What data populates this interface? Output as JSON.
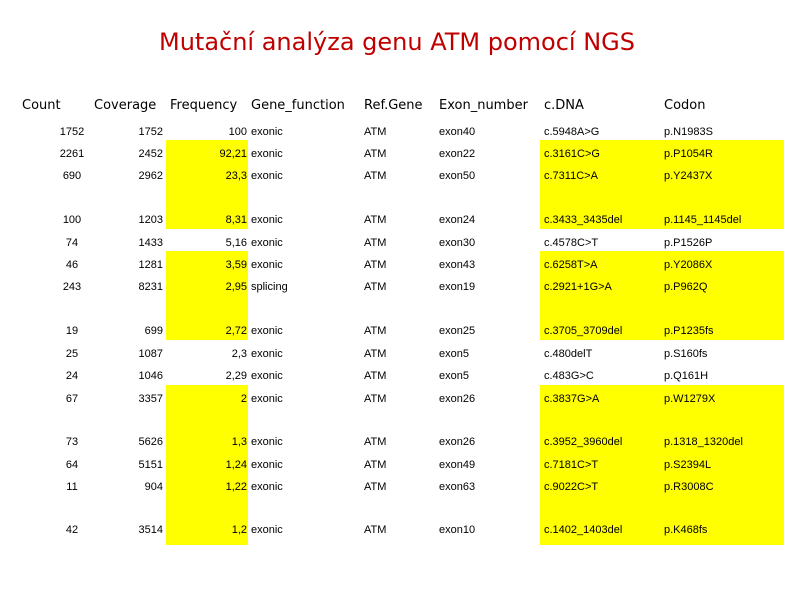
{
  "title": "Mutační analýza genu ATM pomocí NGS",
  "highlight_color": "#ffff00",
  "title_color": "#c00000",
  "headers": [
    "Count",
    "Coverage",
    "Frequency",
    "Gene_function",
    "Ref.Gene",
    "Exon_number",
    "c.DNA",
    "Codon"
  ],
  "rows": [
    {
      "count": "1752",
      "coverage": "1752",
      "frequency": "100",
      "function": "exonic",
      "gene": "ATM",
      "exon": "exon40",
      "cdna": "c.5948A>G",
      "codon": "p.N1983S",
      "highlight": false
    },
    {
      "count": "2261",
      "coverage": "2452",
      "frequency": "92,21",
      "function": "exonic",
      "gene": "ATM",
      "exon": "exon22",
      "cdna": "c.3161C>G",
      "codon": "p.P1054R",
      "highlight": true
    },
    {
      "count": "690",
      "coverage": "2962",
      "frequency": "23,3",
      "function": "exonic",
      "gene": "ATM",
      "exon": "exon50",
      "cdna": "c.7311C>A",
      "codon": "p.Y2437X",
      "highlight": true
    },
    {
      "count": "100",
      "coverage": "1203",
      "frequency": "8,31",
      "function": "exonic",
      "gene": "ATM",
      "exon": "exon24",
      "cdna": "c.3433_3435del",
      "codon": "p.1145_1145del",
      "highlight": true
    },
    {
      "count": "74",
      "coverage": "1433",
      "frequency": "5,16",
      "function": "exonic",
      "gene": "ATM",
      "exon": "exon30",
      "cdna": "c.4578C>T",
      "codon": "p.P1526P",
      "highlight": false
    },
    {
      "count": "46",
      "coverage": "1281",
      "frequency": "3,59",
      "function": "exonic",
      "gene": "ATM",
      "exon": "exon43",
      "cdna": "c.6258T>A",
      "codon": "p.Y2086X",
      "highlight": true
    },
    {
      "count": "243",
      "coverage": "8231",
      "frequency": "2,95",
      "function": "splicing",
      "gene": "ATM",
      "exon": "exon19",
      "cdna": "c.2921+1G>A",
      "codon": "p.P962Q",
      "highlight": true
    },
    {
      "count": "19",
      "coverage": "699",
      "frequency": "2,72",
      "function": "exonic",
      "gene": "ATM",
      "exon": "exon25",
      "cdna": "c.3705_3709del",
      "codon": "p.P1235fs",
      "highlight": true
    },
    {
      "count": "25",
      "coverage": "1087",
      "frequency": "2,3",
      "function": "exonic",
      "gene": "ATM",
      "exon": "exon5",
      "cdna": "c.480delT",
      "codon": "p.S160fs",
      "highlight": false
    },
    {
      "count": "24",
      "coverage": "1046",
      "frequency": "2,29",
      "function": "exonic",
      "gene": "ATM",
      "exon": "exon5",
      "cdna": "c.483G>C",
      "codon": "p.Q161H",
      "highlight": false
    },
    {
      "count": "67",
      "coverage": "3357",
      "frequency": "2",
      "function": "exonic",
      "gene": "ATM",
      "exon": "exon26",
      "cdna": "c.3837G>A",
      "codon": "p.W1279X",
      "highlight": true
    },
    {
      "count": "73",
      "coverage": "5626",
      "frequency": "1,3",
      "function": "exonic",
      "gene": "ATM",
      "exon": "exon26",
      "cdna": "c.3952_3960del",
      "codon": "p.1318_1320del",
      "highlight": true
    },
    {
      "count": "64",
      "coverage": "5151",
      "frequency": "1,24",
      "function": "exonic",
      "gene": "ATM",
      "exon": "exon49",
      "cdna": "c.7181C>T",
      "codon": "p.S2394L",
      "highlight": true
    },
    {
      "count": "11",
      "coverage": "904",
      "frequency": "1,22",
      "function": "exonic",
      "gene": "ATM",
      "exon": "exon63",
      "cdna": "c.9022C>T",
      "codon": "p.R3008C",
      "highlight": true
    },
    {
      "count": "42",
      "coverage": "3514",
      "frequency": "1,2",
      "function": "exonic",
      "gene": "ATM",
      "exon": "exon10",
      "cdna": "c.1402_1403del",
      "codon": "p.K468fs",
      "highlight": true
    }
  ]
}
